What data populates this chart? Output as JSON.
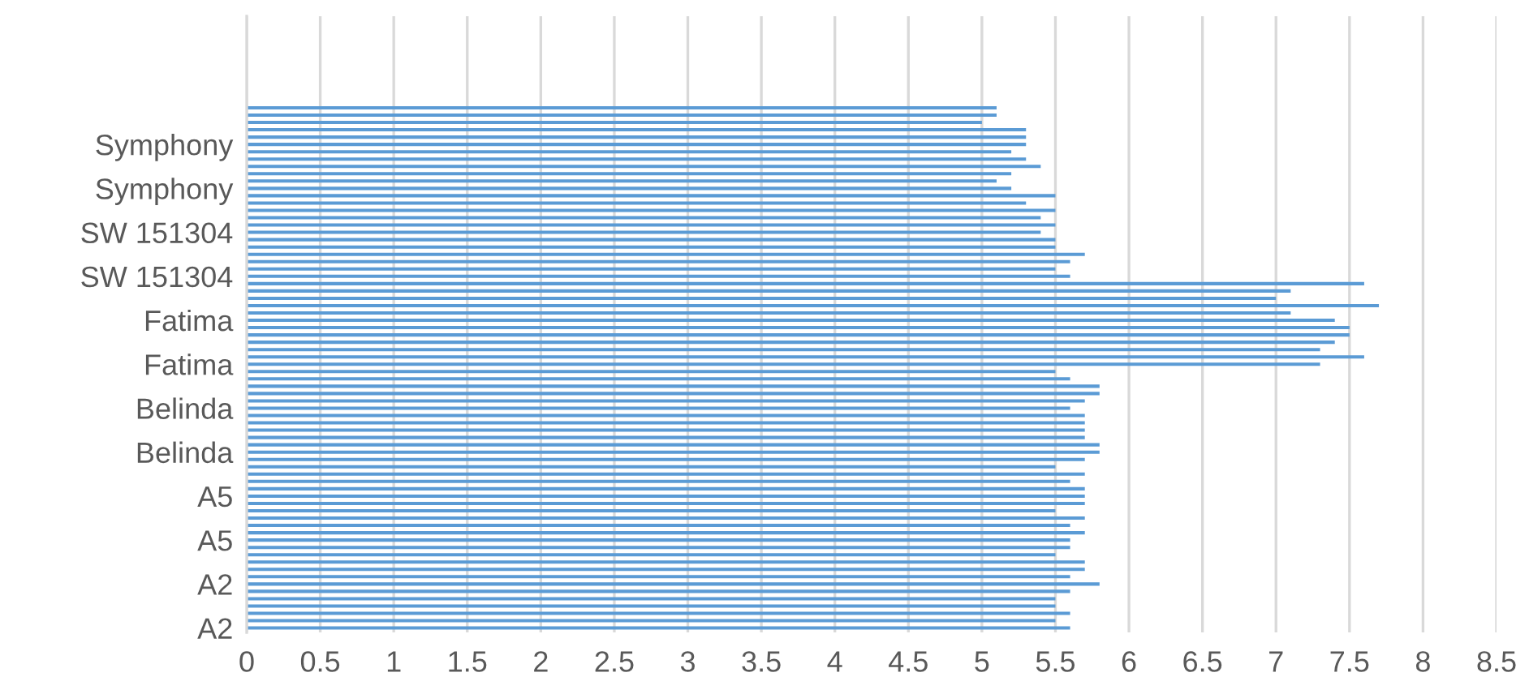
{
  "chart_data": {
    "type": "bar",
    "orientation": "horizontal",
    "color": "#5b9bd5",
    "categories": [
      null,
      null,
      null,
      null,
      null,
      "Symphony",
      null,
      null,
      null,
      null,
      null,
      "Symphony",
      null,
      null,
      null,
      null,
      null,
      "SW 151304",
      null,
      null,
      null,
      null,
      null,
      "SW 151304",
      null,
      null,
      null,
      null,
      null,
      "Fatima",
      null,
      null,
      null,
      null,
      null,
      "Fatima",
      null,
      null,
      null,
      null,
      null,
      "Belinda",
      null,
      null,
      null,
      null,
      null,
      "Belinda",
      null,
      null,
      null,
      null,
      null,
      "A5",
      null,
      null,
      null,
      null,
      null,
      "A5",
      null,
      null,
      null,
      null,
      null,
      "A2",
      null,
      null,
      null,
      null,
      null,
      "A2"
    ],
    "values": [
      5.1,
      5.1,
      5.0,
      5.3,
      5.3,
      5.3,
      5.2,
      5.3,
      5.4,
      5.2,
      5.1,
      5.2,
      5.5,
      5.3,
      5.5,
      5.4,
      5.5,
      5.4,
      5.5,
      5.5,
      5.7,
      5.6,
      5.5,
      5.6,
      7.6,
      7.1,
      7.0,
      7.7,
      7.1,
      7.4,
      7.5,
      7.5,
      7.4,
      7.3,
      7.6,
      7.3,
      5.5,
      5.6,
      5.8,
      5.8,
      5.7,
      5.6,
      5.7,
      5.7,
      5.7,
      5.7,
      5.8,
      5.8,
      5.7,
      5.5,
      5.7,
      5.6,
      5.7,
      5.7,
      5.7,
      5.5,
      5.7,
      5.6,
      5.7,
      5.6,
      5.6,
      5.5,
      5.7,
      5.7,
      5.6,
      5.8,
      5.6,
      5.5,
      5.5,
      5.6,
      5.5,
      5.6
    ],
    "xlim": [
      0,
      8.5
    ],
    "xticks": [
      0,
      0.5,
      1,
      1.5,
      2,
      2.5,
      3,
      3.5,
      4,
      4.5,
      5,
      5.5,
      6,
      6.5,
      7,
      7.5,
      8,
      8.5
    ],
    "grid": "x"
  }
}
